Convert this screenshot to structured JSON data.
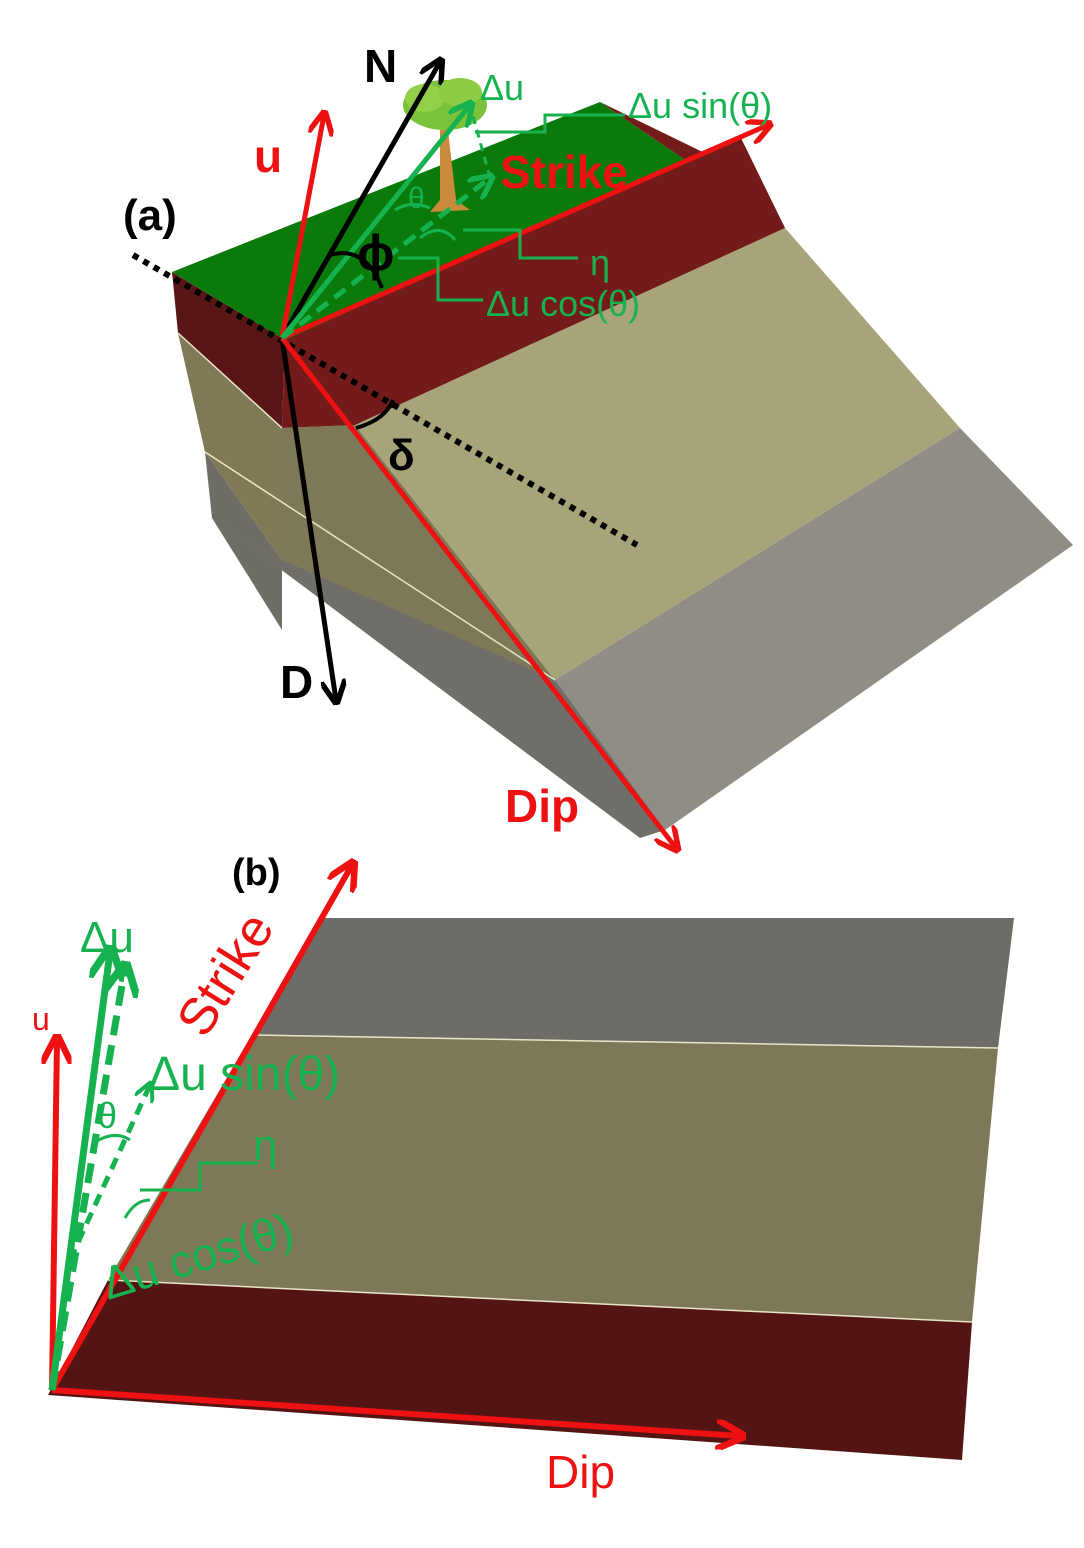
{
  "panel_a": {
    "label": "(a)",
    "arrows": {
      "north": "N",
      "down": "D",
      "u": "u",
      "delta_u": "Δu",
      "strike": "Strike",
      "dip": "Dip"
    },
    "angles": {
      "phi": "ϕ",
      "theta": "θ",
      "delta": "δ",
      "eta": "η"
    },
    "components": {
      "sin": "Δu sin(θ)",
      "cos": "Δu cos(θ)"
    }
  },
  "panel_b": {
    "label": "(b)",
    "arrows": {
      "u": "u",
      "delta_u": "Δu",
      "strike": "Strike",
      "dip": "Dip"
    },
    "angles": {
      "theta": "θ",
      "eta": "η"
    },
    "components": {
      "sin": "Δu sin(θ)",
      "cos": "Δu cos(θ)"
    }
  },
  "colors": {
    "vector_red": "#ee1111",
    "vector_green": "#16b24f",
    "vector_black": "#000000",
    "grass_top": "#0a7a0a",
    "layer_dark_red": "#731b1b",
    "layer_tan": "#a8a479",
    "layer_olive": "#7d7858",
    "layer_grey": "#8f8d86",
    "layer_dark_grey": "#6d6c66"
  },
  "icons": {
    "tree": "tree-icon"
  }
}
